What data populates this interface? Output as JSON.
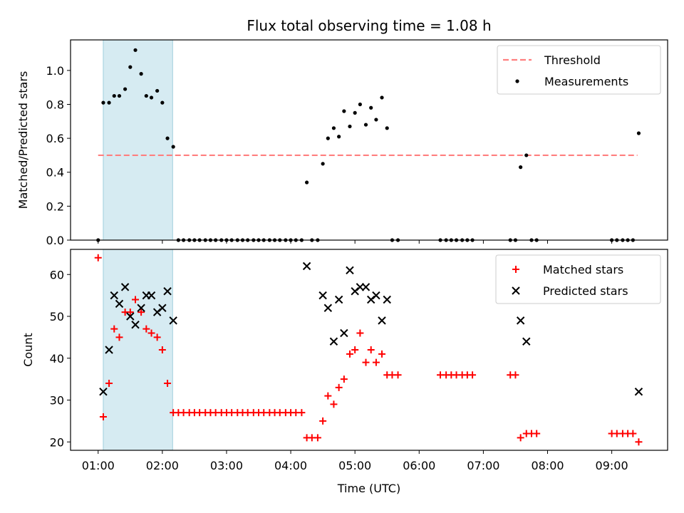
{
  "title": "Flux total observing time = 1.08 h",
  "chart_data": [
    {
      "type": "scatter",
      "ylabel": "Matched/Predicted stars",
      "xlabel": "",
      "xlim": [
        0.57,
        9.87
      ],
      "ylim": [
        0,
        1.18
      ],
      "x_tick_labels": [],
      "y_ticks": [
        0.0,
        0.2,
        0.4,
        0.6,
        0.8,
        1.0
      ],
      "y_tick_labels": [
        "0.0",
        "0.2",
        "0.4",
        "0.6",
        "0.8",
        "1.0"
      ],
      "shaded_span": [
        1.08,
        2.16
      ],
      "threshold": {
        "name": "Threshold",
        "value": 0.5,
        "x_range": [
          1.0,
          9.4
        ]
      },
      "legend": {
        "placement": "upper-right",
        "entries": [
          "Threshold",
          "Measurements"
        ]
      },
      "series": [
        {
          "name": "Measurements",
          "x": [
            1.0,
            1.08,
            1.17,
            1.25,
            1.33,
            1.42,
            1.5,
            1.58,
            1.67,
            1.75,
            1.83,
            1.92,
            2.0,
            2.08,
            2.17,
            2.25,
            2.33,
            2.42,
            2.5,
            2.58,
            2.67,
            2.75,
            2.83,
            2.92,
            3.0,
            3.08,
            3.17,
            3.25,
            3.33,
            3.42,
            3.5,
            3.58,
            3.67,
            3.75,
            3.83,
            3.92,
            4.0,
            4.08,
            4.17,
            4.25,
            4.33,
            4.42,
            4.5,
            4.58,
            4.67,
            4.75,
            4.83,
            4.92,
            5.0,
            5.08,
            5.17,
            5.25,
            5.33,
            5.42,
            5.5,
            5.58,
            5.67,
            6.33,
            6.42,
            6.5,
            6.58,
            6.67,
            6.75,
            6.83,
            7.42,
            7.5,
            7.58,
            7.67,
            7.75,
            7.83,
            9.0,
            9.08,
            9.17,
            9.25,
            9.33,
            9.42
          ],
          "y": [
            0,
            0.81,
            0.81,
            0.85,
            0.85,
            0.89,
            1.02,
            1.12,
            0.98,
            0.85,
            0.84,
            0.88,
            0.81,
            0.6,
            0.55,
            0,
            0,
            0,
            0,
            0,
            0,
            0,
            0,
            0,
            0,
            0,
            0,
            0,
            0,
            0,
            0,
            0,
            0,
            0,
            0,
            0,
            0,
            0,
            0,
            0.34,
            0,
            0,
            0.45,
            0.6,
            0.66,
            0.61,
            0.76,
            0.67,
            0.75,
            0.8,
            0.68,
            0.78,
            0.71,
            0.84,
            0.66,
            0,
            0,
            0,
            0,
            0,
            0,
            0,
            0,
            0,
            0,
            0,
            0.43,
            0.5,
            0,
            0,
            0,
            0,
            0,
            0,
            0,
            0.63
          ]
        }
      ]
    },
    {
      "type": "scatter",
      "ylabel": "Count",
      "xlabel": "Time (UTC)",
      "xlim": [
        0.57,
        9.87
      ],
      "ylim": [
        18,
        66
      ],
      "x_ticks": [
        1,
        2,
        3,
        4,
        5,
        6,
        7,
        8,
        9
      ],
      "x_tick_labels": [
        "01:00",
        "02:00",
        "03:00",
        "04:00",
        "05:00",
        "06:00",
        "07:00",
        "08:00",
        "09:00"
      ],
      "y_ticks": [
        20,
        30,
        40,
        50,
        60
      ],
      "y_tick_labels": [
        "20",
        "30",
        "40",
        "50",
        "60"
      ],
      "shaded_span": [
        1.08,
        2.16
      ],
      "legend": {
        "placement": "upper-right",
        "entries": [
          "Matched stars",
          "Predicted stars"
        ]
      },
      "series": [
        {
          "name": "Matched stars",
          "color": "#ff0000",
          "x": [
            1.0,
            1.08,
            1.17,
            1.25,
            1.33,
            1.42,
            1.5,
            1.58,
            1.67,
            1.75,
            1.83,
            1.92,
            2.0,
            2.08,
            2.17,
            2.25,
            2.33,
            2.42,
            2.5,
            2.58,
            2.67,
            2.75,
            2.83,
            2.92,
            3.0,
            3.08,
            3.17,
            3.25,
            3.33,
            3.42,
            3.5,
            3.58,
            3.67,
            3.75,
            3.83,
            3.92,
            4.0,
            4.08,
            4.17,
            4.25,
            4.33,
            4.42,
            4.5,
            4.58,
            4.67,
            4.75,
            4.83,
            4.92,
            5.0,
            5.08,
            5.17,
            5.25,
            5.33,
            5.42,
            5.5,
            5.58,
            5.67,
            6.33,
            6.42,
            6.5,
            6.58,
            6.67,
            6.75,
            6.83,
            7.42,
            7.5,
            7.58,
            7.67,
            7.75,
            7.83,
            9.0,
            9.08,
            9.17,
            9.25,
            9.33,
            9.42
          ],
          "y": [
            64,
            26,
            34,
            47,
            45,
            51,
            51,
            54,
            51,
            47,
            46,
            45,
            42,
            34,
            27,
            27,
            27,
            27,
            27,
            27,
            27,
            27,
            27,
            27,
            27,
            27,
            27,
            27,
            27,
            27,
            27,
            27,
            27,
            27,
            27,
            27,
            27,
            27,
            27,
            21,
            21,
            21,
            25,
            31,
            29,
            33,
            35,
            41,
            42,
            46,
            39,
            42,
            39,
            41,
            36,
            36,
            36,
            36,
            36,
            36,
            36,
            36,
            36,
            36,
            36,
            36,
            21,
            22,
            22,
            22,
            22,
            22,
            22,
            22,
            22,
            20
          ]
        },
        {
          "name": "Predicted stars",
          "color": "#000000",
          "x": [
            1.08,
            1.17,
            1.25,
            1.33,
            1.42,
            1.5,
            1.58,
            1.67,
            1.75,
            1.83,
            1.92,
            2.0,
            2.08,
            2.17,
            4.25,
            4.5,
            4.58,
            4.67,
            4.75,
            4.83,
            4.92,
            5.0,
            5.08,
            5.17,
            5.25,
            5.33,
            5.42,
            5.5,
            7.58,
            7.67,
            9.42
          ],
          "y": [
            32,
            42,
            55,
            53,
            57,
            50,
            48,
            52,
            55,
            55,
            51,
            52,
            56,
            49,
            62,
            55,
            52,
            44,
            54,
            46,
            61,
            56,
            57,
            57,
            54,
            55,
            49,
            54,
            49,
            44,
            32
          ]
        }
      ]
    }
  ]
}
